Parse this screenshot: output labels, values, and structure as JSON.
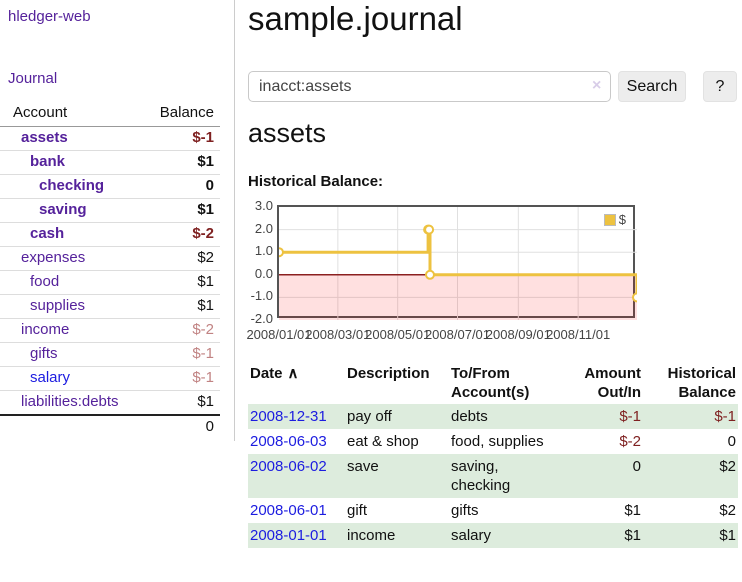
{
  "app": {
    "brand": "hledger-web"
  },
  "colors": {
    "purple": "#55229B",
    "blue": "#1C1CE0",
    "negative": "#7F2121",
    "soft_negative": "#C18383",
    "row_green": "#DDECDD",
    "chart_gold": "#EDC240",
    "chart_border": "#545454",
    "zero_line": "#8B2020",
    "grid_line": "#E0E0E0"
  },
  "sidebar": {
    "nav": [
      {
        "label": "Journal"
      }
    ],
    "accounts_table": {
      "headers": {
        "account": "Account",
        "balance": "Balance"
      },
      "rows": [
        {
          "name": "assets",
          "depth": 1,
          "balance": "$-1",
          "bold": true,
          "name_color": "purple",
          "balance_style": "negative"
        },
        {
          "name": "bank",
          "depth": 2,
          "balance": "$1",
          "bold": true,
          "name_color": "purple",
          "balance_style": "normal"
        },
        {
          "name": "checking",
          "depth": 3,
          "balance": "0",
          "bold": true,
          "name_color": "purple",
          "balance_style": "normal"
        },
        {
          "name": "saving",
          "depth": 3,
          "balance": "$1",
          "bold": true,
          "name_color": "purple",
          "balance_style": "normal"
        },
        {
          "name": "cash",
          "depth": 2,
          "balance": "$-2",
          "bold": true,
          "name_color": "purple",
          "balance_style": "negative"
        },
        {
          "name": "expenses",
          "depth": 1,
          "balance": "$2",
          "bold": false,
          "name_color": "purple",
          "balance_style": "normal"
        },
        {
          "name": "food",
          "depth": 2,
          "balance": "$1",
          "bold": false,
          "name_color": "purple",
          "balance_style": "normal"
        },
        {
          "name": "supplies",
          "depth": 2,
          "balance": "$1",
          "bold": false,
          "name_color": "purple",
          "balance_style": "normal"
        },
        {
          "name": "income",
          "depth": 1,
          "balance": "$-2",
          "bold": false,
          "name_color": "purple",
          "balance_style": "soft_negative"
        },
        {
          "name": "gifts",
          "depth": 2,
          "balance": "$-1",
          "bold": false,
          "name_color": "purple",
          "balance_style": "soft_negative"
        },
        {
          "name": "salary",
          "depth": 2,
          "balance": "$-1",
          "bold": false,
          "name_color": "blue",
          "balance_style": "soft_negative"
        },
        {
          "name": "liabilities:debts",
          "depth": 1,
          "balance": "$1",
          "bold": false,
          "name_color": "purple",
          "balance_style": "normal"
        }
      ],
      "total": "0"
    }
  },
  "main": {
    "title": "sample.journal",
    "search": {
      "value": "inacct:assets",
      "placeholder": "",
      "clear_icon": "×",
      "search_label": "Search",
      "help_label": "?"
    },
    "account_heading": "assets",
    "chart_label": "Historical Balance:",
    "register_table": {
      "headers": [
        {
          "line1": "Date",
          "line2": "",
          "align": "left",
          "sort_icon": "∧"
        },
        {
          "line1": "Description",
          "line2": "",
          "align": "left"
        },
        {
          "line1": "To/From",
          "line2": "Account(s)",
          "align": "left"
        },
        {
          "line1": "Amount",
          "line2": "Out/In",
          "align": "right"
        },
        {
          "line1": "Historical",
          "line2": "Balance",
          "align": "right"
        }
      ],
      "rows": [
        {
          "date": "2008-12-31",
          "description": "pay off",
          "accounts": "debts",
          "amount": "$-1",
          "amount_negative": true,
          "balance": "$-1",
          "balance_negative": true
        },
        {
          "date": "2008-06-03",
          "description": "eat & shop",
          "accounts": "food, supplies",
          "amount": "$-2",
          "amount_negative": true,
          "balance": "0",
          "balance_negative": false
        },
        {
          "date": "2008-06-02",
          "description": "save",
          "accounts": "saving, checking",
          "amount": "0",
          "amount_negative": false,
          "balance": "$2",
          "balance_negative": false
        },
        {
          "date": "2008-06-01",
          "description": "gift",
          "accounts": "gifts",
          "amount": "$1",
          "amount_negative": false,
          "balance": "$2",
          "balance_negative": false
        },
        {
          "date": "2008-01-01",
          "description": "income",
          "accounts": "salary",
          "amount": "$1",
          "amount_negative": false,
          "balance": "$1",
          "balance_negative": false
        }
      ]
    }
  },
  "chart_data": {
    "type": "line",
    "title": "Historical Balance:",
    "step": true,
    "x_range": [
      "2008-01-01",
      "2008-12-31"
    ],
    "ylim": [
      -2.0,
      3.0
    ],
    "yticks": [
      3.0,
      2.0,
      1.0,
      0.0,
      -1.0,
      -2.0
    ],
    "xticks": [
      "2008/01/01",
      "2008/03/01",
      "2008/05/01",
      "2008/07/01",
      "2008/09/01",
      "2008/11/01"
    ],
    "grid": true,
    "legend_position": "top-right",
    "negative_fill": "rgba(255,0,0,0.12)",
    "series": [
      {
        "name": "$",
        "color": "#EDC240",
        "points": [
          [
            "2008-01-01",
            1
          ],
          [
            "2008-06-01",
            2
          ],
          [
            "2008-06-02",
            2
          ],
          [
            "2008-06-03",
            0
          ],
          [
            "2008-12-31",
            -1
          ]
        ]
      }
    ]
  }
}
